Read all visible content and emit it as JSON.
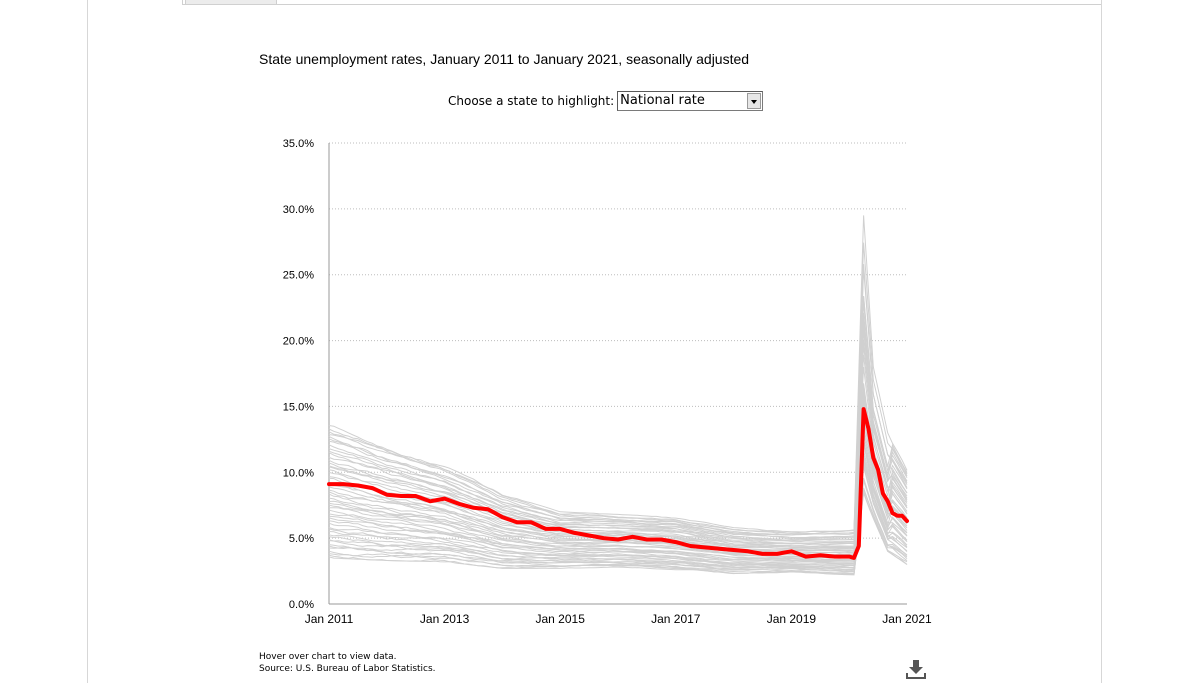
{
  "chart_data": {
    "type": "line",
    "title": "State unemployment rates, January 2011 to January 2021, seasonally adjusted",
    "xlabel": "",
    "ylabel": "",
    "x_range": [
      "2011-01",
      "2021-01"
    ],
    "ylim": [
      0,
      35
    ],
    "y_ticks": [
      "0.0%",
      "5.0%",
      "10.0%",
      "15.0%",
      "20.0%",
      "25.0%",
      "30.0%",
      "35.0%"
    ],
    "x_ticks": [
      "Jan 2011",
      "Jan 2013",
      "Jan 2015",
      "Jan 2017",
      "Jan 2019",
      "Jan 2021"
    ],
    "grid": "horizontal dotted",
    "highlight_color": "#ff0000",
    "background_series_color": "#d0d0d0",
    "highlight_series": {
      "name": "National rate",
      "points": [
        [
          "2011-01",
          9.1
        ],
        [
          "2011-04",
          9.1
        ],
        [
          "2011-07",
          9.0
        ],
        [
          "2011-10",
          8.8
        ],
        [
          "2012-01",
          8.3
        ],
        [
          "2012-04",
          8.2
        ],
        [
          "2012-07",
          8.2
        ],
        [
          "2012-10",
          7.8
        ],
        [
          "2013-01",
          8.0
        ],
        [
          "2013-04",
          7.6
        ],
        [
          "2013-07",
          7.3
        ],
        [
          "2013-10",
          7.2
        ],
        [
          "2014-01",
          6.6
        ],
        [
          "2014-04",
          6.2
        ],
        [
          "2014-07",
          6.2
        ],
        [
          "2014-10",
          5.7
        ],
        [
          "2015-01",
          5.7
        ],
        [
          "2015-04",
          5.4
        ],
        [
          "2015-07",
          5.2
        ],
        [
          "2015-10",
          5.0
        ],
        [
          "2016-01",
          4.9
        ],
        [
          "2016-04",
          5.1
        ],
        [
          "2016-07",
          4.9
        ],
        [
          "2016-10",
          4.9
        ],
        [
          "2017-01",
          4.7
        ],
        [
          "2017-04",
          4.4
        ],
        [
          "2017-07",
          4.3
        ],
        [
          "2017-10",
          4.2
        ],
        [
          "2018-01",
          4.1
        ],
        [
          "2018-04",
          4.0
        ],
        [
          "2018-07",
          3.8
        ],
        [
          "2018-10",
          3.8
        ],
        [
          "2019-01",
          4.0
        ],
        [
          "2019-04",
          3.6
        ],
        [
          "2019-07",
          3.7
        ],
        [
          "2019-10",
          3.6
        ],
        [
          "2020-01",
          3.6
        ],
        [
          "2020-02",
          3.5
        ],
        [
          "2020-03",
          4.4
        ],
        [
          "2020-04",
          14.8
        ],
        [
          "2020-05",
          13.3
        ],
        [
          "2020-06",
          11.1
        ],
        [
          "2020-07",
          10.2
        ],
        [
          "2020-08",
          8.4
        ],
        [
          "2020-09",
          7.8
        ],
        [
          "2020-10",
          6.9
        ],
        [
          "2020-11",
          6.7
        ],
        [
          "2020-12",
          6.7
        ],
        [
          "2021-01",
          6.3
        ]
      ]
    },
    "state_envelope": {
      "points": [
        [
          "2011-01",
          3.5,
          13.7
        ],
        [
          "2012-01",
          3.3,
          12.0
        ],
        [
          "2013-01",
          3.2,
          10.6
        ],
        [
          "2014-01",
          2.7,
          8.4
        ],
        [
          "2015-01",
          2.7,
          7.0
        ],
        [
          "2016-01",
          2.8,
          6.8
        ],
        [
          "2017-01",
          2.6,
          6.6
        ],
        [
          "2018-01",
          2.3,
          5.8
        ],
        [
          "2019-01",
          2.4,
          5.5
        ],
        [
          "2020-02",
          2.2,
          5.7
        ],
        [
          "2020-04",
          8.3,
          29.5
        ],
        [
          "2020-06",
          6.5,
          18.0
        ],
        [
          "2020-09",
          4.0,
          13.0
        ],
        [
          "2021-01",
          3.0,
          10.2
        ]
      ]
    }
  },
  "selector": {
    "label": "Choose a state to highlight:",
    "selected": "National rate"
  },
  "notes": {
    "hover": "Hover over chart to view data.",
    "source": "Source: U.S. Bureau of Labor Statistics."
  },
  "icons": {
    "download": "download-icon"
  }
}
